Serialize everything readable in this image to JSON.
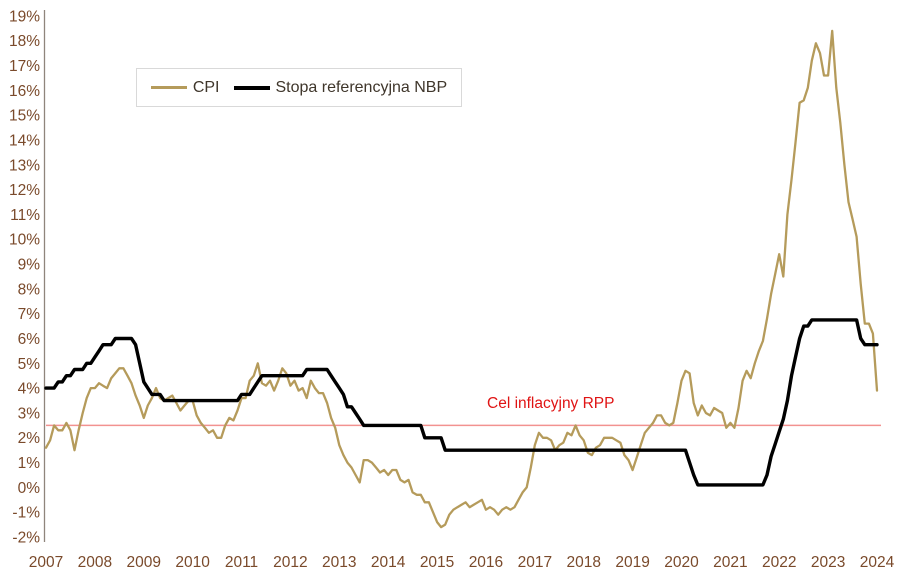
{
  "chart": {
    "legend": [
      {
        "label": "CPI",
        "color": "#b59b5b"
      },
      {
        "label": "Stopa referencyjna NBP",
        "color": "#000000"
      }
    ],
    "annotation": {
      "text": "Cel inflacyjny RPP",
      "color": "#e01414"
    },
    "y_axis": {
      "tick_labels": [
        "19%",
        "18%",
        "17%",
        "16%",
        "15%",
        "14%",
        "13%",
        "12%",
        "11%",
        "10%",
        "9%",
        "8%",
        "7%",
        "6%",
        "5%",
        "4%",
        "3%",
        "2%",
        "1%",
        "0%",
        "-1%",
        "-2%"
      ],
      "label_color": "#7a4a2b",
      "axis_line_color": "#8f857c"
    },
    "x_axis": {
      "year_labels": [
        "2007",
        "2008",
        "2009",
        "2010",
        "2011",
        "2012",
        "2013",
        "2014",
        "2015",
        "2016",
        "2017",
        "2018",
        "2019",
        "2020",
        "2021",
        "2022",
        "2023",
        "2024"
      ],
      "label_color": "#7a4a2b"
    }
  },
  "chart_data": {
    "type": "line",
    "title": "",
    "xlabel": "",
    "ylabel": "",
    "x_start": "2007-01",
    "x_end": "2024-01",
    "frequency": "monthly",
    "ylim": [
      -2,
      19
    ],
    "y_tick_step": 1,
    "y_tick_format": "percent",
    "grid": false,
    "legend_position": "top-left-inside",
    "reference_line": {
      "label": "Cel inflacyjny RPP",
      "value": 2.5,
      "color": "#f29290"
    },
    "series": [
      {
        "name": "CPI",
        "color": "#b59b5b",
        "values": [
          1.6,
          1.9,
          2.5,
          2.3,
          2.3,
          2.6,
          2.3,
          1.5,
          2.3,
          3.0,
          3.6,
          4.0,
          4.0,
          4.2,
          4.1,
          4.0,
          4.4,
          4.6,
          4.8,
          4.8,
          4.5,
          4.2,
          3.7,
          3.3,
          2.8,
          3.3,
          3.6,
          4.0,
          3.6,
          3.5,
          3.6,
          3.7,
          3.4,
          3.1,
          3.3,
          3.5,
          3.5,
          2.9,
          2.6,
          2.4,
          2.2,
          2.3,
          2.0,
          2.0,
          2.5,
          2.8,
          2.7,
          3.1,
          3.6,
          3.6,
          4.3,
          4.5,
          5.0,
          4.2,
          4.1,
          4.3,
          3.9,
          4.3,
          4.8,
          4.6,
          4.1,
          4.3,
          3.9,
          4.0,
          3.6,
          4.3,
          4.0,
          3.8,
          3.8,
          3.4,
          2.8,
          2.4,
          1.7,
          1.3,
          1.0,
          0.8,
          0.5,
          0.2,
          1.1,
          1.1,
          1.0,
          0.8,
          0.6,
          0.7,
          0.5,
          0.7,
          0.7,
          0.3,
          0.2,
          0.3,
          -0.2,
          -0.3,
          -0.3,
          -0.6,
          -0.6,
          -1.0,
          -1.4,
          -1.6,
          -1.5,
          -1.1,
          -0.9,
          -0.8,
          -0.7,
          -0.6,
          -0.8,
          -0.7,
          -0.6,
          -0.5,
          -0.9,
          -0.8,
          -0.9,
          -1.1,
          -0.9,
          -0.8,
          -0.9,
          -0.8,
          -0.5,
          -0.2,
          0.0,
          0.8,
          1.7,
          2.2,
          2.0,
          2.0,
          1.9,
          1.5,
          1.7,
          1.8,
          2.2,
          2.1,
          2.5,
          2.1,
          1.9,
          1.4,
          1.3,
          1.6,
          1.7,
          2.0,
          2.0,
          2.0,
          1.9,
          1.8,
          1.3,
          1.1,
          0.7,
          1.2,
          1.7,
          2.2,
          2.4,
          2.6,
          2.9,
          2.9,
          2.6,
          2.5,
          2.6,
          3.4,
          4.3,
          4.7,
          4.6,
          3.4,
          2.9,
          3.3,
          3.0,
          2.9,
          3.2,
          3.1,
          3.0,
          2.4,
          2.6,
          2.4,
          3.2,
          4.3,
          4.7,
          4.4,
          5.0,
          5.5,
          5.9,
          6.8,
          7.8,
          8.6,
          9.4,
          8.5,
          11.0,
          12.4,
          13.9,
          15.5,
          15.6,
          16.1,
          17.2,
          17.9,
          17.5,
          16.6,
          16.6,
          18.4,
          16.1,
          14.7,
          13.0,
          11.5,
          10.8,
          10.1,
          8.2,
          6.6,
          6.6,
          6.2,
          3.9
        ]
      },
      {
        "name": "Stopa referencyjna NBP",
        "color": "#000000",
        "values": [
          4.0,
          4.0,
          4.0,
          4.25,
          4.25,
          4.5,
          4.5,
          4.75,
          4.75,
          4.75,
          5.0,
          5.0,
          5.25,
          5.5,
          5.75,
          5.75,
          5.75,
          6.0,
          6.0,
          6.0,
          6.0,
          6.0,
          5.75,
          5.0,
          4.25,
          4.0,
          3.75,
          3.75,
          3.75,
          3.5,
          3.5,
          3.5,
          3.5,
          3.5,
          3.5,
          3.5,
          3.5,
          3.5,
          3.5,
          3.5,
          3.5,
          3.5,
          3.5,
          3.5,
          3.5,
          3.5,
          3.5,
          3.5,
          3.75,
          3.75,
          3.75,
          4.0,
          4.25,
          4.5,
          4.5,
          4.5,
          4.5,
          4.5,
          4.5,
          4.5,
          4.5,
          4.5,
          4.5,
          4.5,
          4.75,
          4.75,
          4.75,
          4.75,
          4.75,
          4.75,
          4.5,
          4.25,
          4.0,
          3.75,
          3.25,
          3.25,
          3.0,
          2.75,
          2.5,
          2.5,
          2.5,
          2.5,
          2.5,
          2.5,
          2.5,
          2.5,
          2.5,
          2.5,
          2.5,
          2.5,
          2.5,
          2.5,
          2.5,
          2.0,
          2.0,
          2.0,
          2.0,
          2.0,
          1.5,
          1.5,
          1.5,
          1.5,
          1.5,
          1.5,
          1.5,
          1.5,
          1.5,
          1.5,
          1.5,
          1.5,
          1.5,
          1.5,
          1.5,
          1.5,
          1.5,
          1.5,
          1.5,
          1.5,
          1.5,
          1.5,
          1.5,
          1.5,
          1.5,
          1.5,
          1.5,
          1.5,
          1.5,
          1.5,
          1.5,
          1.5,
          1.5,
          1.5,
          1.5,
          1.5,
          1.5,
          1.5,
          1.5,
          1.5,
          1.5,
          1.5,
          1.5,
          1.5,
          1.5,
          1.5,
          1.5,
          1.5,
          1.5,
          1.5,
          1.5,
          1.5,
          1.5,
          1.5,
          1.5,
          1.5,
          1.5,
          1.5,
          1.5,
          1.5,
          1.0,
          0.5,
          0.1,
          0.1,
          0.1,
          0.1,
          0.1,
          0.1,
          0.1,
          0.1,
          0.1,
          0.1,
          0.1,
          0.1,
          0.1,
          0.1,
          0.1,
          0.1,
          0.1,
          0.5,
          1.25,
          1.75,
          2.25,
          2.75,
          3.5,
          4.5,
          5.25,
          6.0,
          6.5,
          6.5,
          6.75,
          6.75,
          6.75,
          6.75,
          6.75,
          6.75,
          6.75,
          6.75,
          6.75,
          6.75,
          6.75,
          6.75,
          6.0,
          5.75,
          5.75,
          5.75,
          5.75
        ]
      }
    ]
  }
}
